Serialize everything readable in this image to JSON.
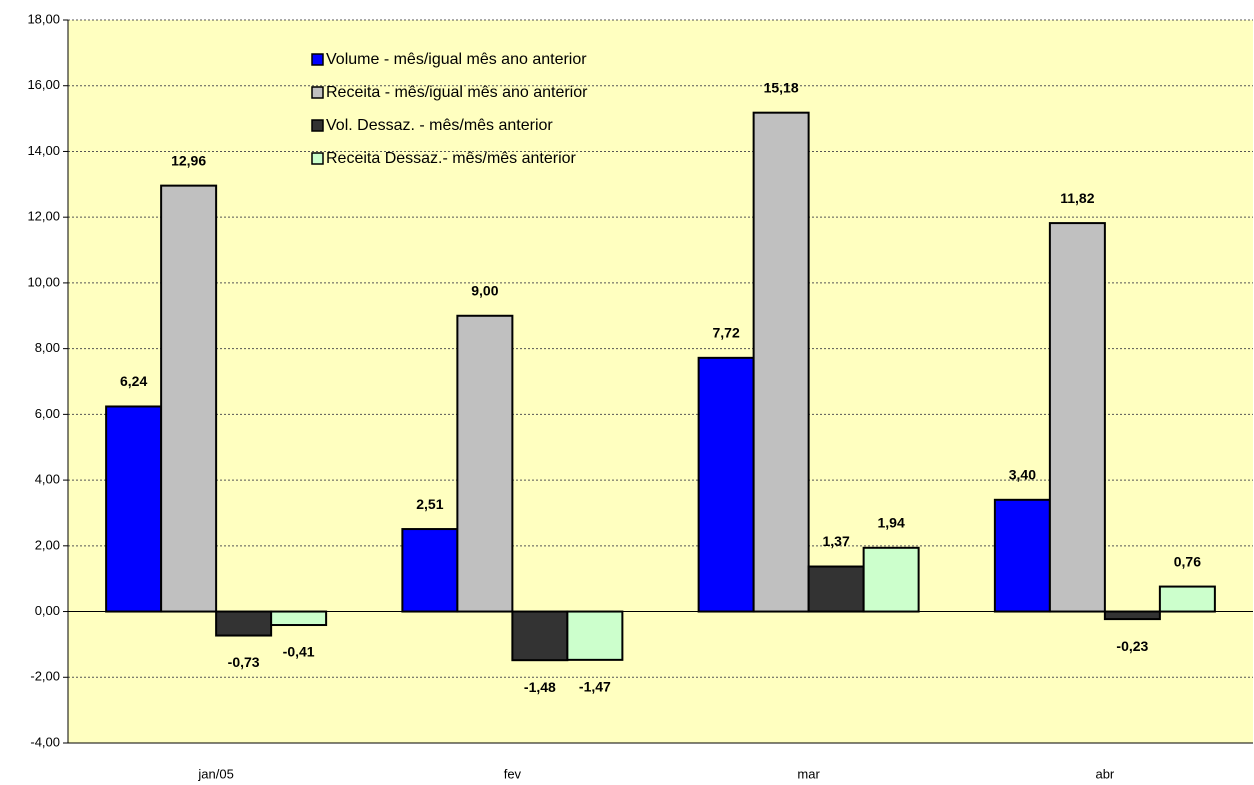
{
  "chart_data": {
    "type": "bar",
    "categories": [
      "jan/05",
      "fev",
      "mar",
      "abr"
    ],
    "series": [
      {
        "name": "Volume - mês/igual mês ano anterior",
        "color": "#0000ff",
        "values": [
          6.24,
          2.51,
          7.72,
          3.4
        ],
        "value_labels": [
          "6,24",
          "2,51",
          "7,72",
          "3,40"
        ]
      },
      {
        "name": "Receita - mês/igual mês ano anterior",
        "color": "#c0c0c0",
        "values": [
          12.96,
          9.0,
          15.18,
          11.82
        ],
        "value_labels": [
          "12,96",
          "9,00",
          "15,18",
          "11,82"
        ]
      },
      {
        "name": "Vol. Dessaz. - mês/mês anterior",
        "color": "#333333",
        "values": [
          -0.73,
          -1.48,
          1.37,
          -0.23
        ],
        "value_labels": [
          "-0,73",
          "-1,48",
          "1,37",
          "-0,23"
        ]
      },
      {
        "name": "Receita Dessaz.- mês/mês anterior",
        "color": "#ccffcc",
        "values": [
          -0.41,
          -1.47,
          1.94,
          0.76
        ],
        "value_labels": [
          "-0,41",
          "-1,47",
          "1,94",
          "0,76"
        ]
      }
    ],
    "ylim": [
      -4,
      18
    ],
    "yticks": [
      {
        "value": -4,
        "label": "-4,00"
      },
      {
        "value": -2,
        "label": "-2,00"
      },
      {
        "value": 0,
        "label": "0,00"
      },
      {
        "value": 2,
        "label": "2,00"
      },
      {
        "value": 4,
        "label": "4,00"
      },
      {
        "value": 6,
        "label": "6,00"
      },
      {
        "value": 8,
        "label": "8,00"
      },
      {
        "value": 10,
        "label": "10,00"
      },
      {
        "value": 12,
        "label": "12,00"
      },
      {
        "value": 14,
        "label": "14,00"
      },
      {
        "value": 16,
        "label": "16,00"
      },
      {
        "value": 18,
        "label": "18,00"
      }
    ],
    "grid": true,
    "legend": "top"
  }
}
